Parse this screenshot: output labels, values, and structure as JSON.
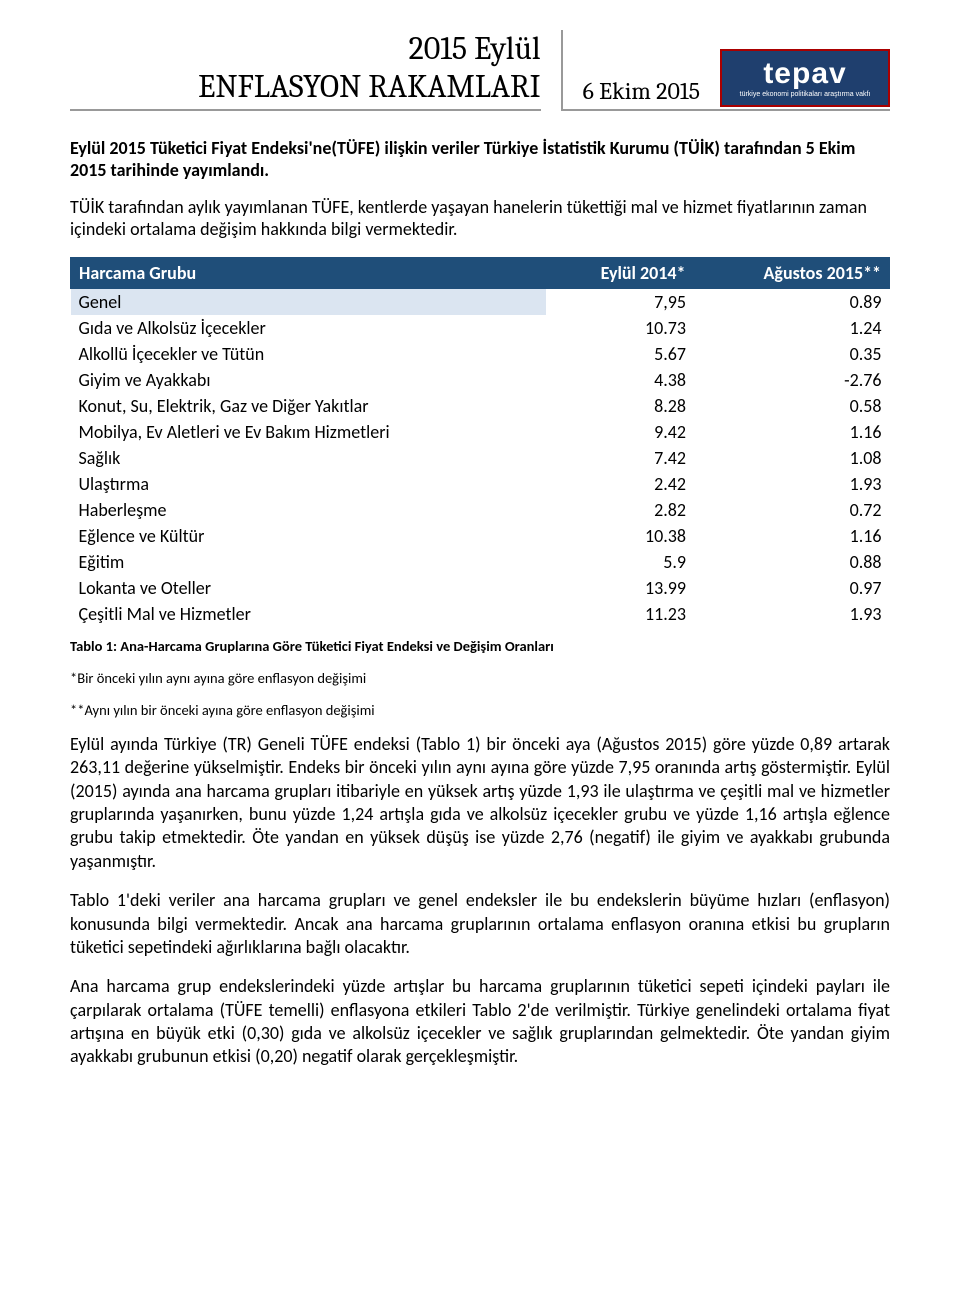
{
  "header": {
    "title_line1": "2015 Eylül",
    "title_line2": "ENFLASYON RAKAMLARI",
    "date": "6 Ekim 2015",
    "logo_text": "tepav",
    "logo_sub": "türkiye ekonomi politikaları araştırma vakfı"
  },
  "intro_bold": "Eylül 2015 Tüketici Fiyat Endeksi'ne(TÜFE) ilişkin veriler Türkiye İstatistik Kurumu (TÜİK) tarafından 5 Ekim 2015 tarihinde yayımlandı.",
  "intro_plain": "TÜİK tarafından aylık yayımlanan TÜFE, kentlerde yaşayan hanelerin tükettiği mal ve hizmet fiyatlarının zaman içindeki ortalama değişim hakkında bilgi vermektedir.",
  "table": {
    "columns": [
      "Harcama Grubu",
      "Eylül 2014*",
      "Ağustos 2015**"
    ],
    "header_bg": "#1f4e79",
    "header_fg": "#ffffff",
    "genel_bg": "#dbe5f1",
    "rows": [
      [
        "Genel",
        "7,95",
        "0.89"
      ],
      [
        "Gıda ve Alkolsüz İçecekler",
        "10.73",
        "1.24"
      ],
      [
        "Alkollü İçecekler ve Tütün",
        "5.67",
        "0.35"
      ],
      [
        "Giyim ve Ayakkabı",
        "4.38",
        "-2.76"
      ],
      [
        "Konut, Su, Elektrik, Gaz ve Diğer Yakıtlar",
        "8.28",
        "0.58"
      ],
      [
        "Mobilya, Ev Aletleri ve Ev Bakım Hizmetleri",
        "9.42",
        "1.16"
      ],
      [
        "Sağlık",
        "7.42",
        "1.08"
      ],
      [
        "Ulaştırma",
        "2.42",
        "1.93"
      ],
      [
        "Haberleşme",
        "2.82",
        "0.72"
      ],
      [
        "Eğlence ve Kültür",
        "10.38",
        "1.16"
      ],
      [
        "Eğitim",
        "5.9",
        "0.88"
      ],
      [
        "Lokanta ve Oteller",
        "13.99",
        "0.97"
      ],
      [
        "Çeşitli Mal ve Hizmetler",
        "11.23",
        "1.93"
      ]
    ]
  },
  "caption": "Tablo 1: Ana-Harcama Gruplarına Göre Tüketici Fiyat Endeksi ve Değişim Oranları",
  "footnote1": "*Bir önceki yılın aynı ayına göre enflasyon değişimi",
  "footnote2": "**Aynı yılın bir önceki ayına göre enflasyon değişimi",
  "para1": "Eylül ayında Türkiye (TR) Geneli TÜFE endeksi (Tablo 1) bir önceki aya (Ağustos 2015) göre yüzde 0,89 artarak 263,11 değerine yükselmiştir. Endeks bir önceki yılın aynı ayına göre yüzde 7,95 oranında artış göstermiştir. Eylül (2015) ayında ana harcama grupları itibariyle en yüksek artış yüzde 1,93 ile ulaştırma ve çeşitli mal ve hizmetler gruplarında yaşanırken, bunu yüzde 1,24 artışla gıda ve alkolsüz içecekler grubu ve yüzde 1,16 artışla eğlence grubu takip etmektedir. Öte yandan en yüksek düşüş ise yüzde 2,76 (negatif) ile giyim ve ayakkabı grubunda yaşanmıştır.",
  "para2": "Tablo 1'deki veriler ana harcama grupları ve genel endeksler ile bu endekslerin büyüme hızları (enflasyon) konusunda bilgi vermektedir. Ancak ana harcama gruplarının ortalama enflasyon oranına etkisi bu grupların tüketici sepetindeki ağırlıklarına bağlı olacaktır.",
  "para3": "Ana harcama grup endekslerindeki yüzde artışlar bu harcama gruplarının tüketici sepeti içindeki payları ile çarpılarak ortalama (TÜFE temelli) enflasyona etkileri Tablo 2'de verilmiştir. Türkiye genelindeki ortalama fiyat artışına en büyük etki (0,30) gıda ve alkolsüz içecekler ve sağlık gruplarından gelmektedir. Öte yandan giyim ayakkabı grubunun etkisi (0,20) negatif olarak gerçekleşmiştir."
}
